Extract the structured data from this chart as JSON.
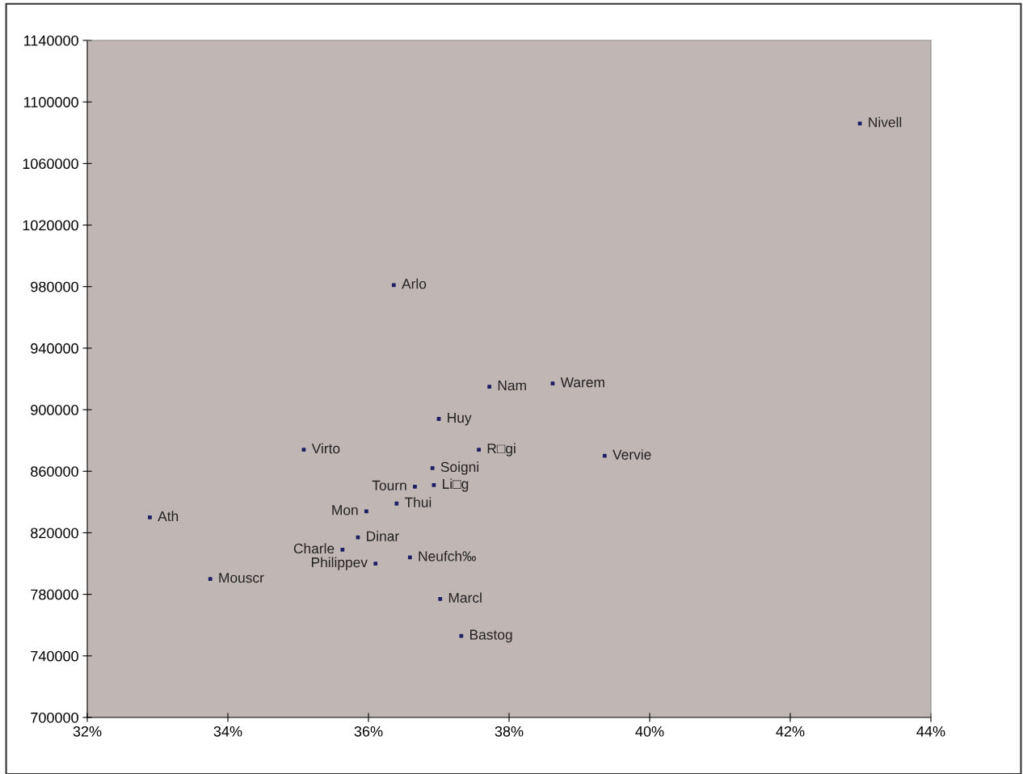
{
  "chart_data": {
    "type": "scatter",
    "x": [
      42.99,
      36.36,
      37.72,
      38.62,
      37.0,
      35.08,
      36.91,
      37.57,
      39.36,
      36.66,
      36.93,
      36.4,
      35.97,
      32.89,
      35.85,
      35.63,
      36.59,
      36.1,
      33.75,
      37.02,
      37.32
    ],
    "values": [
      1086000,
      981000,
      915000,
      917000,
      894000,
      874000,
      862000,
      874000,
      870000,
      850000,
      851000,
      839000,
      834000,
      830000,
      817000,
      809000,
      804000,
      800000,
      790000,
      777000,
      753000
    ],
    "value_labels": [
      "Nivell",
      "Arlo",
      "Nam",
      "Warem",
      "Huy",
      "Virto",
      "Soigni",
      "R□gi",
      "Vervie",
      "Tourn",
      "Li□g",
      "Thui",
      "Mon",
      "Ath",
      "Dinar",
      "Charle",
      "Neufch‰",
      "Philippev",
      "Mouscr",
      "Marcl",
      "Bastog"
    ],
    "color": "#1f1f66",
    "marker": "square",
    "xlim": [
      32,
      44
    ],
    "xticks": [
      {
        "value": 32,
        "label": "32%"
      },
      {
        "value": 34,
        "label": "34%"
      },
      {
        "value": 36,
        "label": "36%"
      },
      {
        "value": 38,
        "label": "38%"
      },
      {
        "value": 40,
        "label": "40%"
      },
      {
        "value": 42,
        "label": "42%"
      },
      {
        "value": 44,
        "label": "44%"
      }
    ],
    "ylim": [
      700000,
      1140000
    ],
    "yticks": [
      700000,
      740000,
      780000,
      820000,
      860000,
      900000,
      940000,
      980000,
      1020000,
      1060000,
      1100000,
      1140000
    ],
    "grid": false
  }
}
